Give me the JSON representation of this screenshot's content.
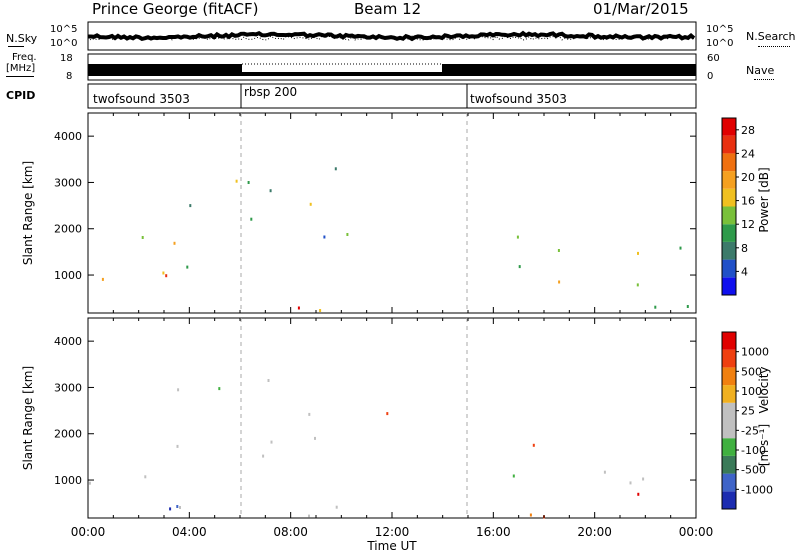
{
  "header": {
    "station": "Prince George (fitACF)",
    "beam": "Beam 12",
    "date": "01/Mar/2015"
  },
  "sky_panel": {
    "left_label": "N.Sky",
    "right_label": "N.Search",
    "tick_top": "10^5",
    "tick_bottom": "10^0"
  },
  "freq_panel": {
    "left_label_1": "Freq.",
    "left_label_2": "[MHz]",
    "right_label": "Nave",
    "left_tick_top": "18",
    "left_tick_bottom": "8",
    "right_tick_top": "60",
    "right_tick_bottom": "0"
  },
  "cpid": {
    "label": "CPID",
    "segments": [
      {
        "name": "twofsound 3503",
        "start": 0,
        "end": 6
      },
      {
        "name": "rbsp 200",
        "start": 6,
        "end": 15
      },
      {
        "name": "twofsound 3503",
        "start": 15,
        "end": 24
      }
    ]
  },
  "chart_data": [
    {
      "type": "heatmap",
      "title": "",
      "xlabel": "Time UT",
      "ylabel": "Slant Range [km]",
      "x_ticks": [
        "00:00",
        "04:00",
        "08:00",
        "12:00",
        "16:00",
        "20:00",
        "00:00"
      ],
      "xlim_hours": [
        0,
        24
      ],
      "y_ticks": [
        1000,
        2000,
        3000,
        4000
      ],
      "ylim": [
        180,
        4500
      ],
      "colorbar": {
        "label": "Power [dB]",
        "ticks": [
          4,
          8,
          12,
          16,
          20,
          24,
          28
        ],
        "range": [
          0,
          30
        ],
        "colors": [
          "#1010ee",
          "#2050c8",
          "#3c7a6a",
          "#2e9a4a",
          "#79c03a",
          "#f0c020",
          "#f5a020",
          "#ef7010",
          "#e83010",
          "#e00000"
        ]
      },
      "scatter_bands": [
        {
          "t0": 0,
          "t1": 6,
          "r0": 400,
          "r1": 1900,
          "level": 0.55
        },
        {
          "t0": 0,
          "t1": 3.5,
          "r0": 800,
          "r1": 1400,
          "level": 0.9
        },
        {
          "t0": 3,
          "t1": 10,
          "r0": 1500,
          "r1": 3400,
          "level": 0.35
        },
        {
          "t0": 8,
          "t1": 12.7,
          "r0": 1800,
          "r1": 2600,
          "level": 0.3
        },
        {
          "t0": 0,
          "t1": 11,
          "r0": 200,
          "r1": 600,
          "level": 0.8
        },
        {
          "t0": 15,
          "t1": 24,
          "r0": 700,
          "r1": 1900,
          "level": 0.45
        },
        {
          "t0": 17,
          "t1": 23,
          "r0": 750,
          "r1": 1050,
          "level": 0.85
        },
        {
          "t0": 15,
          "t1": 24,
          "r0": 200,
          "r1": 500,
          "level": 0.2
        }
      ]
    },
    {
      "type": "heatmap",
      "title": "",
      "xlabel": "Time UT",
      "ylabel": "Slant Range [km]",
      "x_ticks": [
        "00:00",
        "04:00",
        "08:00",
        "12:00",
        "16:00",
        "20:00",
        "00:00"
      ],
      "xlim_hours": [
        0,
        24
      ],
      "y_ticks": [
        1000,
        2000,
        3000,
        4000
      ],
      "ylim": [
        180,
        4500
      ],
      "colorbar": {
        "label_main": "Velocity",
        "label_units": "[m s⁻¹]",
        "ticks": [
          "1000",
          "500",
          "100",
          "25",
          "-25",
          "-100",
          "-500",
          "-1000"
        ],
        "colors": [
          "#1c2cb0",
          "#3f64c8",
          "#3a7a58",
          "#40b040",
          "#c0c0c0",
          "#c0c0c0",
          "#f0b020",
          "#f08010",
          "#ef4010",
          "#e00000"
        ]
      },
      "scatter_bands": [
        {
          "t0": 0,
          "t1": 6,
          "r0": 400,
          "r1": 1900,
          "level": 0.7
        },
        {
          "t0": 3,
          "t1": 10,
          "r0": 1500,
          "r1": 3400,
          "level": 0.5
        },
        {
          "t0": 8,
          "t1": 12.7,
          "r0": 1800,
          "r1": 2600,
          "level": 0.5
        },
        {
          "t0": 0,
          "t1": 11,
          "r0": 200,
          "r1": 600,
          "level": 0.4
        },
        {
          "t0": 15,
          "t1": 24,
          "r0": 700,
          "r1": 1900,
          "level": 0.5
        },
        {
          "t0": 15,
          "t1": 24,
          "r0": 200,
          "r1": 500,
          "level": 0.5
        }
      ]
    }
  ]
}
